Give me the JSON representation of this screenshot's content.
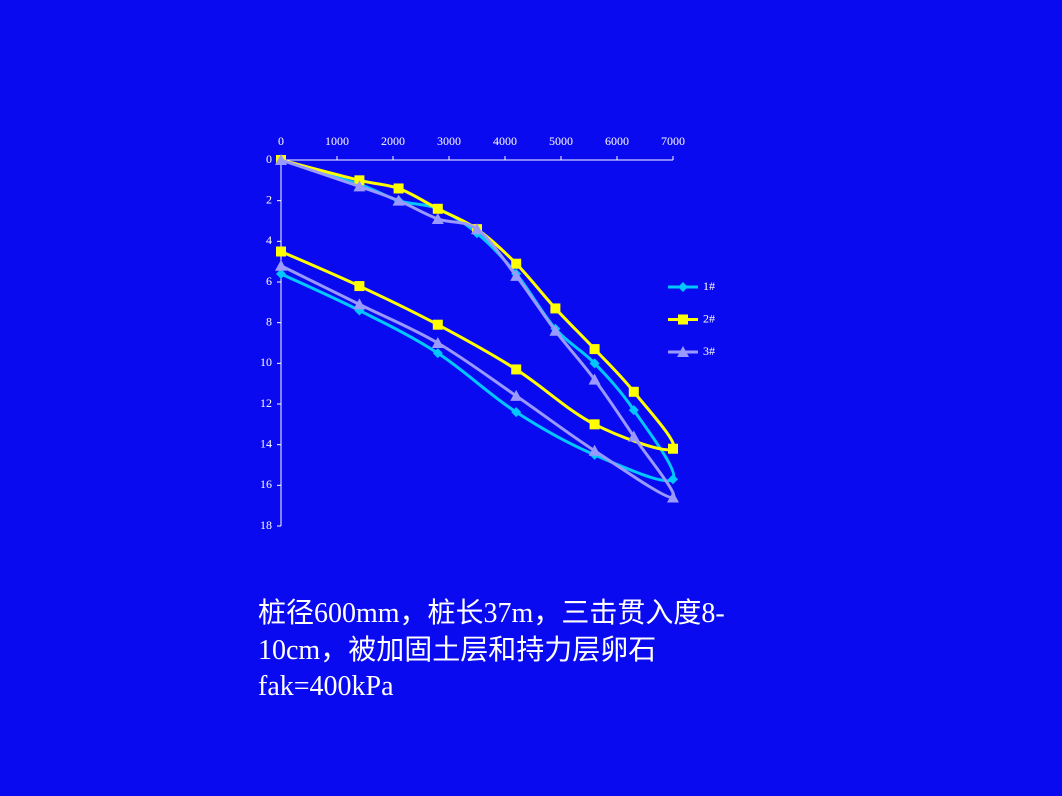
{
  "chart_data": {
    "type": "line",
    "xlim": [
      0,
      7000
    ],
    "xticks": [
      0,
      1000,
      2000,
      3000,
      4000,
      5000,
      6000,
      7000
    ],
    "xaxis_position": "top",
    "ylim": [
      0,
      18
    ],
    "yticks": [
      0,
      2,
      4,
      6,
      8,
      10,
      12,
      14,
      16,
      18
    ],
    "yaxis_inverted": true,
    "smooth": true,
    "legend": "right",
    "series": [
      {
        "name": "1#",
        "color": "#00c8ff",
        "marker": "diamond",
        "x": [
          0,
          1400,
          2100,
          2800,
          3500,
          4200,
          4900,
          5600,
          6300,
          7000,
          5600,
          4200,
          2800,
          1400,
          0
        ],
        "values": [
          0,
          1.2,
          2.0,
          2.4,
          3.6,
          5.6,
          8.3,
          10.0,
          12.3,
          15.7,
          14.5,
          12.4,
          9.5,
          7.4,
          5.6
        ]
      },
      {
        "name": "2#",
        "color": "#ffff00",
        "marker": "square",
        "x": [
          0,
          1400,
          2100,
          2800,
          3500,
          4200,
          4900,
          5600,
          6300,
          7000,
          5600,
          4200,
          2800,
          1400,
          0
        ],
        "values": [
          0,
          1.0,
          1.4,
          2.4,
          3.4,
          5.1,
          7.3,
          9.3,
          11.4,
          14.2,
          13.0,
          10.3,
          8.1,
          6.2,
          4.5
        ]
      },
      {
        "name": "3#",
        "color": "#9999ff",
        "marker": "triangle",
        "x": [
          0,
          1400,
          2100,
          2800,
          3500,
          4200,
          4900,
          5600,
          6300,
          7000,
          5600,
          4200,
          2800,
          1400,
          0
        ],
        "values": [
          0,
          1.3,
          2.0,
          2.9,
          3.4,
          5.7,
          8.4,
          10.8,
          13.6,
          16.6,
          14.3,
          11.6,
          9.0,
          7.1,
          5.2
        ]
      }
    ]
  },
  "caption": [
    "桩径600mm，桩长37m，三击贯入度8-",
    "10cm，被加固土层和持力层卵石",
    "fak=400kPa"
  ]
}
